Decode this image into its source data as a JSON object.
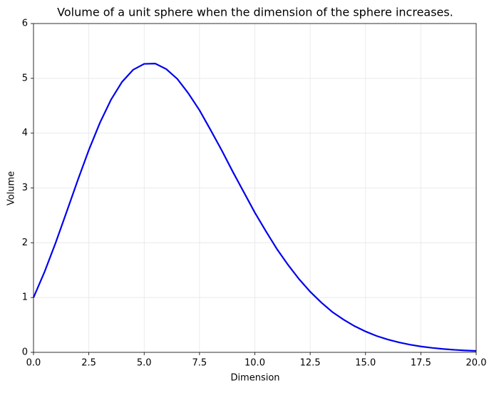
{
  "chart_data": {
    "type": "line",
    "title": "Volume of a unit sphere when the dimension of the sphere increases.",
    "xlabel": "Dimension",
    "ylabel": "Volume",
    "x": [
      0,
      0.5,
      1,
      1.5,
      2,
      2.5,
      3,
      3.5,
      4,
      4.5,
      5,
      5.5,
      6,
      6.5,
      7,
      7.5,
      8,
      8.5,
      9,
      9.5,
      10,
      10.5,
      11,
      11.5,
      12,
      12.5,
      13,
      13.5,
      14,
      14.5,
      15,
      15.5,
      16,
      16.5,
      17,
      17.5,
      18,
      18.5,
      19,
      19.5,
      20
    ],
    "series": [
      {
        "name": "Volume",
        "color": "#0000ee",
        "values": [
          1,
          1.4688,
          2,
          2.5674,
          3.1416,
          3.693,
          4.1888,
          4.6094,
          4.9348,
          5.1563,
          5.2638,
          5.2697,
          5.1677,
          4.9884,
          4.7248,
          4.4182,
          4.0587,
          3.6902,
          3.2985,
          2.9245,
          2.5502,
          2.2098,
          1.8841,
          1.5967,
          1.3353,
          1.1066,
          0.9106,
          0.7371,
          0.5993,
          0.4798,
          0.3814,
          0.299,
          0.2353,
          0.1828,
          0.1409,
          0.1074,
          0.0821,
          0.0621,
          0.0466,
          0.0346,
          0.0258
        ]
      }
    ],
    "xlim": [
      0,
      20
    ],
    "xticks": [
      {
        "value": 0,
        "label": "0.0"
      },
      {
        "value": 2.5,
        "label": "2.5"
      },
      {
        "value": 5,
        "label": "5.0"
      },
      {
        "value": 7.5,
        "label": "7.5"
      },
      {
        "value": 10,
        "label": "10.0"
      },
      {
        "value": 12.5,
        "label": "12.5"
      },
      {
        "value": 15,
        "label": "15.0"
      },
      {
        "value": 17.5,
        "label": "17.5"
      },
      {
        "value": 20,
        "label": "20.0"
      }
    ],
    "ylim": [
      0,
      6
    ],
    "yticks": [
      0,
      1,
      2,
      3,
      4,
      5,
      6
    ],
    "grid": true
  }
}
